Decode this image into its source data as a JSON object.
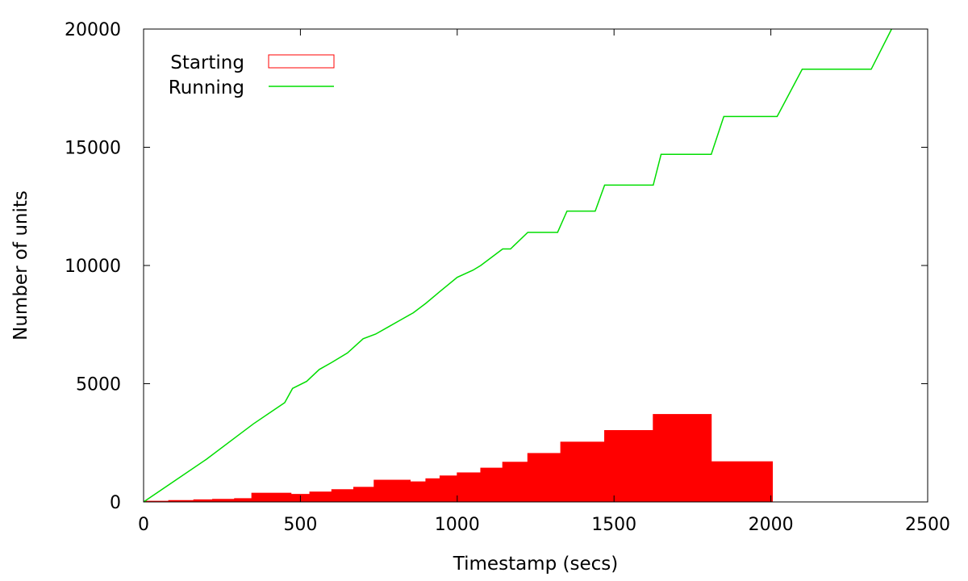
{
  "chart_data": {
    "type": "line",
    "xlabel": "Timestamp (secs)",
    "ylabel": "Number of units",
    "xlim": [
      0,
      2500
    ],
    "ylim": [
      0,
      20000
    ],
    "x_ticks": [
      0,
      500,
      1000,
      1500,
      2000,
      2500
    ],
    "y_ticks": [
      0,
      5000,
      10000,
      15000,
      20000
    ],
    "grid": false,
    "legend_position": "top-left",
    "series": [
      {
        "name": "Starting",
        "style": "filled bars",
        "color": "#ff0000",
        "bins": [
          {
            "x0": 0,
            "x1": 80,
            "y": 30
          },
          {
            "x0": 80,
            "x1": 160,
            "y": 60
          },
          {
            "x0": 160,
            "x1": 220,
            "y": 90
          },
          {
            "x0": 220,
            "x1": 290,
            "y": 110
          },
          {
            "x0": 290,
            "x1": 345,
            "y": 140
          },
          {
            "x0": 345,
            "x1": 470,
            "y": 370
          },
          {
            "x0": 470,
            "x1": 530,
            "y": 320
          },
          {
            "x0": 530,
            "x1": 600,
            "y": 420
          },
          {
            "x0": 600,
            "x1": 670,
            "y": 520
          },
          {
            "x0": 670,
            "x1": 735,
            "y": 620
          },
          {
            "x0": 735,
            "x1": 850,
            "y": 920
          },
          {
            "x0": 850,
            "x1": 900,
            "y": 850
          },
          {
            "x0": 900,
            "x1": 945,
            "y": 980
          },
          {
            "x0": 945,
            "x1": 1000,
            "y": 1100
          },
          {
            "x0": 1000,
            "x1": 1075,
            "y": 1230
          },
          {
            "x0": 1075,
            "x1": 1145,
            "y": 1430
          },
          {
            "x0": 1145,
            "x1": 1225,
            "y": 1680
          },
          {
            "x0": 1225,
            "x1": 1330,
            "y": 2050
          },
          {
            "x0": 1330,
            "x1": 1470,
            "y": 2530
          },
          {
            "x0": 1470,
            "x1": 1625,
            "y": 3020
          },
          {
            "x0": 1625,
            "x1": 1810,
            "y": 3700
          },
          {
            "x0": 1810,
            "x1": 2005,
            "y": 1700
          }
        ]
      },
      {
        "name": "Running",
        "style": "line",
        "color": "#00dd00",
        "x": [
          0,
          100,
          200,
          300,
          350,
          450,
          475,
          520,
          560,
          600,
          650,
          700,
          740,
          780,
          820,
          860,
          900,
          945,
          1000,
          1050,
          1075,
          1145,
          1170,
          1225,
          1240,
          1320,
          1350,
          1440,
          1470,
          1600,
          1625,
          1650,
          1780,
          1810,
          1850,
          2000,
          2020,
          2100,
          2300,
          2320,
          2385
        ],
        "y": [
          0,
          900,
          1800,
          2800,
          3300,
          4200,
          4800,
          5100,
          5600,
          5900,
          6300,
          6900,
          7100,
          7400,
          7700,
          8000,
          8400,
          8900,
          9500,
          9800,
          10000,
          10700,
          10700,
          11400,
          11400,
          11400,
          12300,
          12300,
          13400,
          13400,
          13400,
          14700,
          14700,
          14700,
          16300,
          16300,
          16300,
          18300,
          18300,
          18300,
          20000
        ]
      }
    ]
  }
}
